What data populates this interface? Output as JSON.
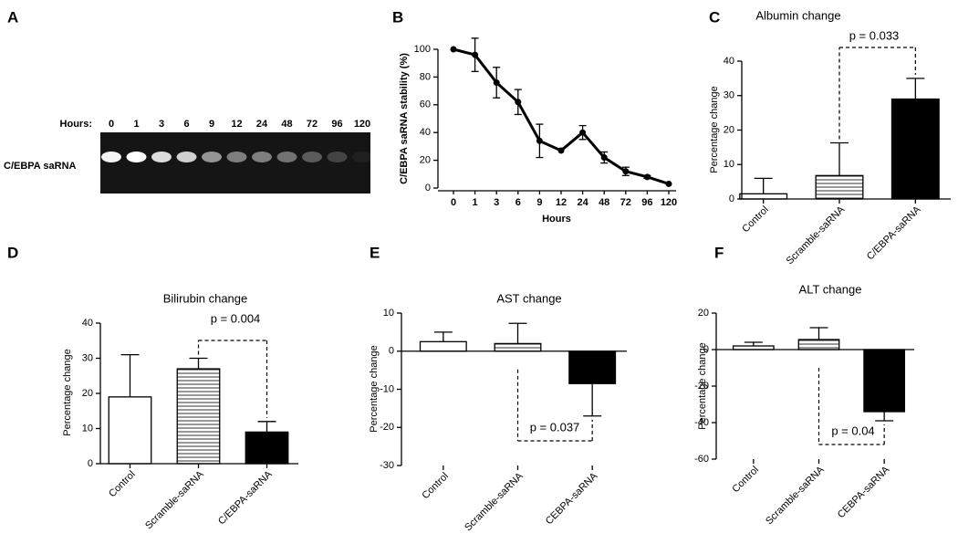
{
  "chart_data": [
    {
      "type": "gel",
      "panel": "A",
      "x_label": "Hours:",
      "categories": [
        "0",
        "1",
        "3",
        "6",
        "9",
        "12",
        "24",
        "48",
        "72",
        "96",
        "120"
      ],
      "row_label": "C/EBPA saRNA"
    },
    {
      "type": "line",
      "panel": "B",
      "y_label": "C/EBPA saRNA stability (%)",
      "x_label": "Hours",
      "categories": [
        "0",
        "1",
        "3",
        "6",
        "9",
        "12",
        "24",
        "48",
        "72",
        "96",
        "120"
      ],
      "values": [
        100,
        96,
        76,
        62,
        34,
        27,
        40,
        22,
        12,
        8,
        3
      ],
      "errors": [
        null,
        12,
        11,
        9,
        12,
        null,
        5,
        4,
        3,
        1,
        null
      ],
      "color": "#000000",
      "ylim": [
        0,
        100
      ],
      "yticks": [
        0,
        20,
        40,
        60,
        80,
        100
      ]
    },
    {
      "type": "bar",
      "panel": "C",
      "title": "Albumin change",
      "y_label": "Percentage change",
      "categories": [
        "Control",
        "Scramble-saRNA",
        "C/EBPA-saRNA"
      ],
      "values": [
        1.5,
        6.8,
        29
      ],
      "errors": [
        4.5,
        9.5,
        6
      ],
      "colors": [
        "#ffffff",
        "hatch",
        "#000000"
      ],
      "ylim": [
        0,
        40
      ],
      "yticks": [
        0,
        10,
        20,
        30,
        40
      ],
      "annotation": "p = 0.033"
    },
    {
      "type": "bar",
      "panel": "D",
      "title": "Bilirubin change",
      "y_label": "Percentage change",
      "categories": [
        "Control",
        "Scramble-saRNA",
        "C/EBPA-saRNA"
      ],
      "values": [
        19,
        27,
        9
      ],
      "errors": [
        12,
        3,
        3
      ],
      "colors": [
        "#ffffff",
        "hatch",
        "#000000"
      ],
      "ylim": [
        0,
        40
      ],
      "yticks": [
        0,
        10,
        20,
        30,
        40
      ],
      "annotation": "p = 0.004"
    },
    {
      "type": "bar",
      "panel": "E",
      "title": "AST change",
      "y_label": "Percentage change",
      "categories": [
        "Control",
        "Scramble-saRNA",
        "CEBPA-saRNA"
      ],
      "values": [
        2.5,
        2,
        -8.5
      ],
      "errors": [
        2.5,
        5.3,
        8.5
      ],
      "colors": [
        "#ffffff",
        "hatch",
        "#000000"
      ],
      "ylim": [
        -30,
        10
      ],
      "yticks": [
        -30,
        -20,
        -10,
        0,
        10
      ],
      "annotation": "p = 0.037"
    },
    {
      "type": "bar",
      "panel": "F",
      "title": "ALT change",
      "y_label": "Percentage change",
      "categories": [
        "Control",
        "Scramble-saRNA",
        "CEBPA-saRNA"
      ],
      "values": [
        2,
        5.5,
        -34
      ],
      "errors": [
        2,
        6.5,
        5
      ],
      "colors": [
        "#ffffff",
        "hatch",
        "#000000"
      ],
      "ylim": [
        -60,
        20
      ],
      "yticks": [
        -60,
        -40,
        -20,
        0,
        20
      ],
      "annotation": "p = 0.04"
    }
  ]
}
